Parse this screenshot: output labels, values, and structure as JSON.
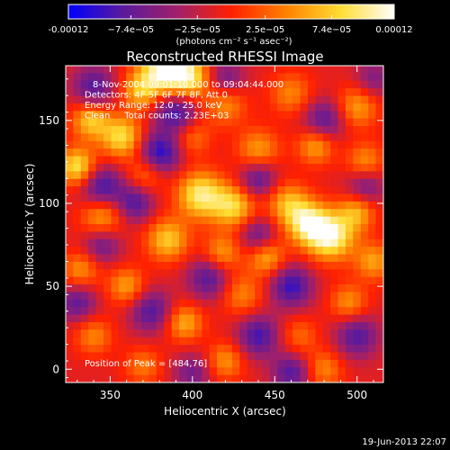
{
  "chart_data": {
    "type": "heatmap",
    "title": "Reconstructed RHESSI Image",
    "xlabel": "Heliocentric X (arcsec)",
    "ylabel": "Heliocentric Y (arcsec)",
    "xlim": [
      323,
      516
    ],
    "ylim": [
      -8,
      183
    ],
    "xticks": [
      350,
      400,
      450,
      500
    ],
    "xtick_labels": [
      "350",
      "400",
      "450",
      "500"
    ],
    "yticks": [
      0,
      50,
      100,
      150
    ],
    "ytick_labels": [
      "0",
      "50",
      "100",
      "150"
    ],
    "colorbar": {
      "range": [
        -0.00012,
        0.00012
      ],
      "ticks": [
        -0.00012,
        -7.4e-05,
        -2.5e-05,
        2.5e-05,
        7.4e-05,
        0.00012
      ],
      "tick_labels": [
        "-0.00012",
        "−7.4e−05",
        "−2.5e−05",
        "2.5e−05",
        "7.4e−05",
        "0.00012"
      ],
      "unit_label": "(photons cm⁻² s⁻¹ asec⁻²)",
      "colors": [
        "#0000ff",
        "#5a1a9c",
        "#a0206a",
        "#ff2000",
        "#ff8000",
        "#ffdc30",
        "#ffffff"
      ]
    },
    "annotations": [
      "8-Nov-2004 09:01:10.000 to 09:04:44.000",
      "Detectors: 4F 5F 6F 7F 8F, Att 0",
      "Energy Range: 12.0 - 25.0 keV",
      "Clean     Total counts: 2.23E+03"
    ],
    "peak_label": "Position of Peak = [484,76]",
    "peak": [
      484,
      76
    ],
    "grid": false,
    "date_stamp": "19-Jun-2013 22:07",
    "blobs": [
      {
        "x": 382,
        "y": 180,
        "v": 1.0,
        "s": 10
      },
      {
        "x": 398,
        "y": 176,
        "v": 0.85,
        "s": 9
      },
      {
        "x": 368,
        "y": 168,
        "v": 0.6,
        "s": 8
      },
      {
        "x": 420,
        "y": 160,
        "v": 0.5,
        "s": 9
      },
      {
        "x": 460,
        "y": 166,
        "v": 0.45,
        "s": 9
      },
      {
        "x": 500,
        "y": 158,
        "v": 0.55,
        "s": 9
      },
      {
        "x": 338,
        "y": 150,
        "v": 0.7,
        "s": 8
      },
      {
        "x": 357,
        "y": 140,
        "v": 0.8,
        "s": 9
      },
      {
        "x": 400,
        "y": 140,
        "v": 0.4,
        "s": 8
      },
      {
        "x": 440,
        "y": 132,
        "v": 0.55,
        "s": 9
      },
      {
        "x": 475,
        "y": 135,
        "v": 0.6,
        "s": 8
      },
      {
        "x": 505,
        "y": 125,
        "v": 0.5,
        "s": 8
      },
      {
        "x": 330,
        "y": 122,
        "v": 0.85,
        "s": 8
      },
      {
        "x": 372,
        "y": 118,
        "v": 0.45,
        "s": 8
      },
      {
        "x": 405,
        "y": 105,
        "v": 0.9,
        "s": 10
      },
      {
        "x": 425,
        "y": 98,
        "v": 0.75,
        "s": 9
      },
      {
        "x": 458,
        "y": 100,
        "v": 0.6,
        "s": 9
      },
      {
        "x": 484,
        "y": 80,
        "v": 1.0,
        "s": 10
      },
      {
        "x": 470,
        "y": 88,
        "v": 0.85,
        "s": 9
      },
      {
        "x": 500,
        "y": 95,
        "v": 0.6,
        "s": 8
      },
      {
        "x": 345,
        "y": 92,
        "v": 0.6,
        "s": 9
      },
      {
        "x": 385,
        "y": 78,
        "v": 0.7,
        "s": 9
      },
      {
        "x": 418,
        "y": 70,
        "v": 0.55,
        "s": 8
      },
      {
        "x": 445,
        "y": 68,
        "v": 0.65,
        "s": 8
      },
      {
        "x": 510,
        "y": 65,
        "v": 0.55,
        "s": 8
      },
      {
        "x": 332,
        "y": 60,
        "v": 0.5,
        "s": 8
      },
      {
        "x": 360,
        "y": 50,
        "v": 0.55,
        "s": 8
      },
      {
        "x": 430,
        "y": 45,
        "v": 0.45,
        "s": 9
      },
      {
        "x": 495,
        "y": 40,
        "v": 0.5,
        "s": 8
      },
      {
        "x": 395,
        "y": 28,
        "v": 0.6,
        "s": 8
      },
      {
        "x": 340,
        "y": 20,
        "v": 0.45,
        "s": 8
      },
      {
        "x": 465,
        "y": 20,
        "v": 0.35,
        "s": 8
      },
      {
        "x": 420,
        "y": 5,
        "v": 0.5,
        "s": 8
      },
      {
        "x": 370,
        "y": 2,
        "v": 0.4,
        "s": 8
      },
      {
        "x": 480,
        "y": 0,
        "v": 0.45,
        "s": 8
      },
      {
        "x": 340,
        "y": 170,
        "v": -0.6,
        "s": 9
      },
      {
        "x": 420,
        "y": 175,
        "v": -0.5,
        "s": 8
      },
      {
        "x": 390,
        "y": 155,
        "v": -0.7,
        "s": 9
      },
      {
        "x": 480,
        "y": 150,
        "v": -0.6,
        "s": 9
      },
      {
        "x": 380,
        "y": 130,
        "v": -0.8,
        "s": 9
      },
      {
        "x": 345,
        "y": 110,
        "v": -0.7,
        "s": 9
      },
      {
        "x": 440,
        "y": 115,
        "v": -0.6,
        "s": 8
      },
      {
        "x": 505,
        "y": 110,
        "v": -0.5,
        "s": 8
      },
      {
        "x": 365,
        "y": 100,
        "v": -0.6,
        "s": 8
      },
      {
        "x": 440,
        "y": 80,
        "v": -0.55,
        "s": 8
      },
      {
        "x": 410,
        "y": 55,
        "v": -0.6,
        "s": 9
      },
      {
        "x": 460,
        "y": 50,
        "v": -0.7,
        "s": 9
      },
      {
        "x": 345,
        "y": 75,
        "v": -0.5,
        "s": 8
      },
      {
        "x": 330,
        "y": 40,
        "v": -0.55,
        "s": 8
      },
      {
        "x": 375,
        "y": 35,
        "v": -0.6,
        "s": 9
      },
      {
        "x": 440,
        "y": 20,
        "v": -0.65,
        "s": 9
      },
      {
        "x": 500,
        "y": 20,
        "v": -0.6,
        "s": 9
      },
      {
        "x": 460,
        "y": -2,
        "v": -0.6,
        "s": 8
      },
      {
        "x": 400,
        "y": -2,
        "v": -0.45,
        "s": 8
      },
      {
        "x": 510,
        "y": 175,
        "v": -0.4,
        "s": 8
      }
    ]
  }
}
